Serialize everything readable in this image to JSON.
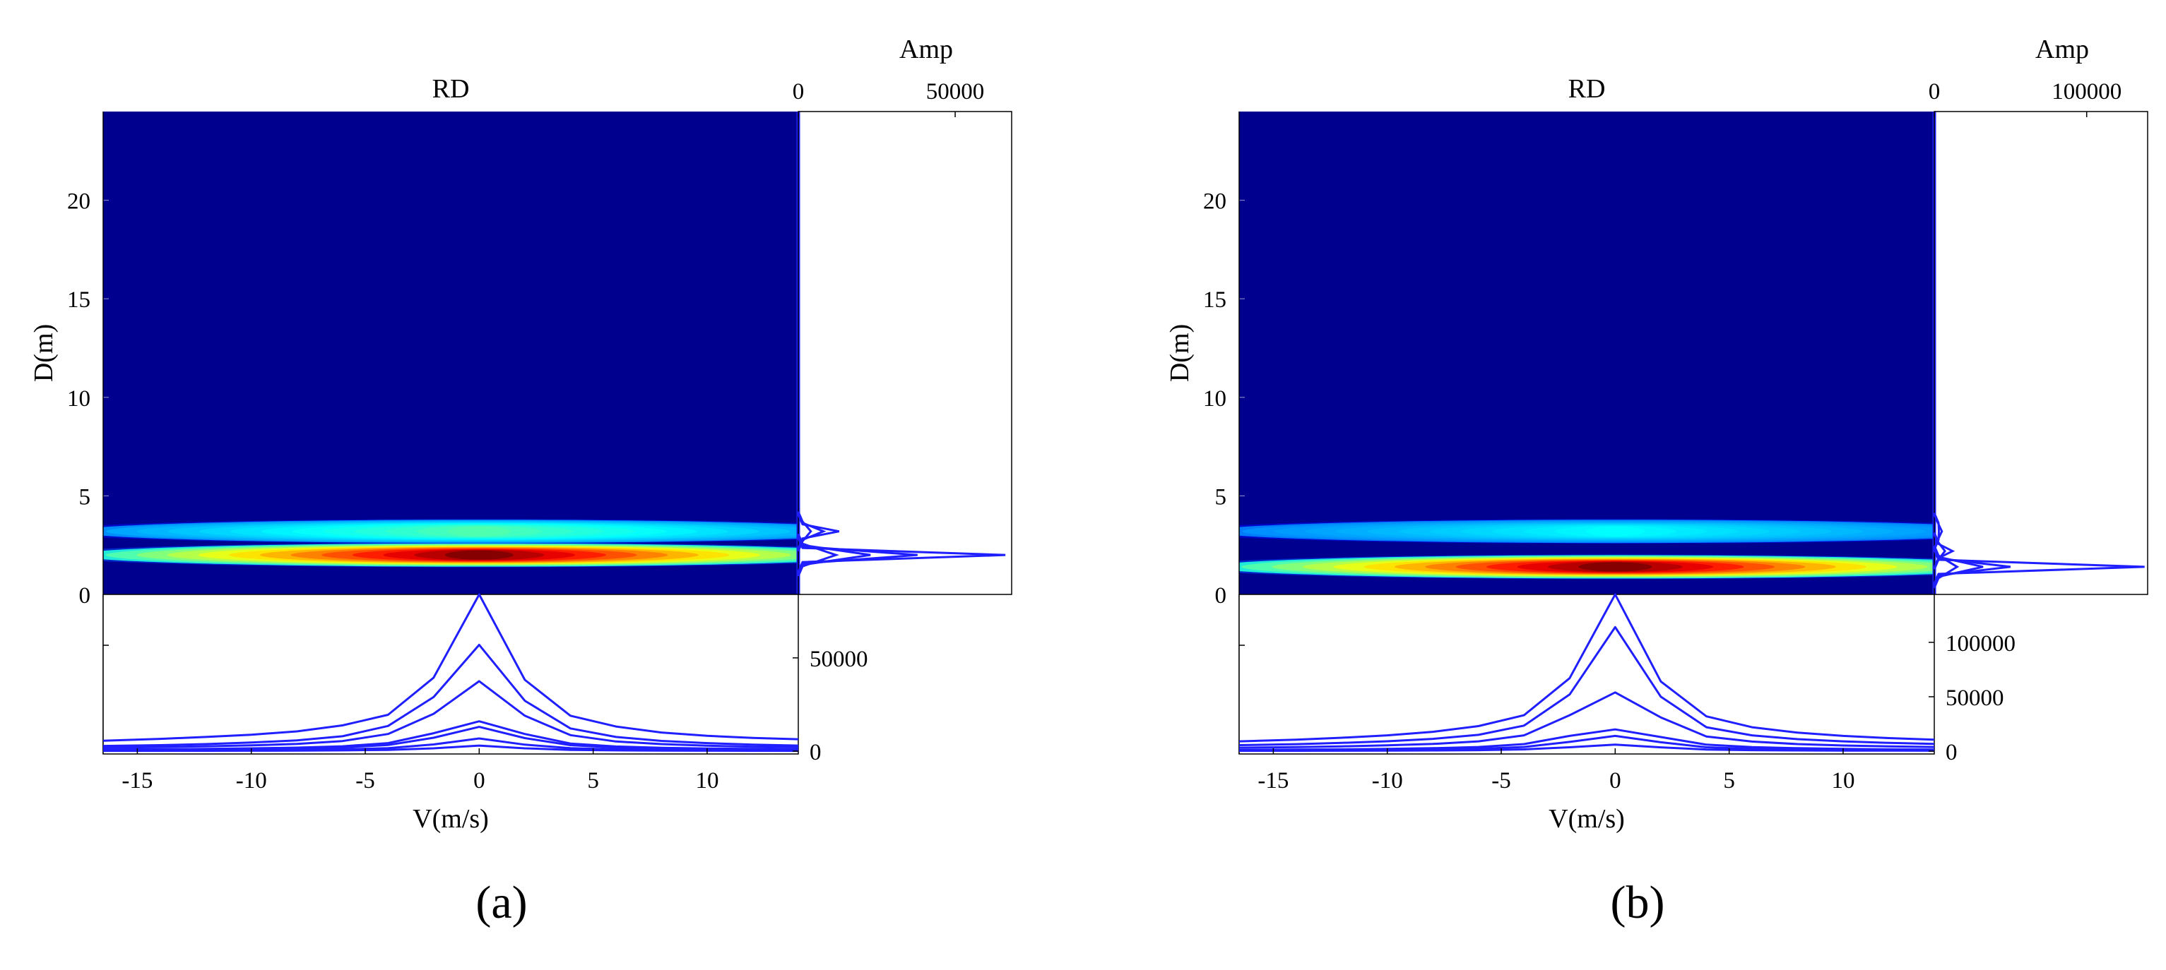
{
  "colors": {
    "background_low": "#00008f",
    "line": "#1f1fff",
    "axis": "#000000"
  },
  "chart_data": [
    {
      "type": "heatmap",
      "panel_label": "(a)",
      "title": "RD",
      "xlabel": "V(m/s)",
      "ylabel": "D(m)",
      "xlim": [
        -16.5,
        14
      ],
      "ylim": [
        0,
        24.5
      ],
      "xticks": [
        -15,
        -10,
        -5,
        0,
        5,
        10
      ],
      "yticks": [
        0,
        5,
        10,
        15,
        20
      ],
      "colormap": "jet",
      "hotspots": [
        {
          "v": 0,
          "d": 2.0,
          "intensity": 1.0,
          "spread_v": 2.4,
          "spread_d": 0.18
        },
        {
          "v": 0,
          "d": 3.2,
          "intensity": 0.3,
          "spread_v": 2.2,
          "spread_d": 0.2
        }
      ],
      "side_profile": {
        "label": "Amp",
        "axis_ticks": [
          0,
          50000
        ],
        "xlim": [
          0,
          68000
        ],
        "peaks": [
          {
            "d": 2.0,
            "amps": [
              66000,
              38000,
              23000,
              12000
            ]
          },
          {
            "d": 3.2,
            "amps": [
              13000,
              8000,
              4000
            ]
          }
        ]
      },
      "bottom_profile": {
        "axis_ticks": [
          0,
          50000
        ],
        "ylim": [
          0,
          84000
        ],
        "v": [
          -16.5,
          -14,
          -12,
          -10,
          -8,
          -6,
          -4,
          -2,
          0,
          2,
          4,
          6,
          8,
          10,
          12,
          14
        ],
        "series": [
          [
            5600,
            6600,
            7600,
            8800,
            10600,
            13800,
            19500,
            39400,
            84000,
            38200,
            19000,
            13200,
            10000,
            8200,
            7100,
            6400
          ],
          [
            2800,
            3200,
            3800,
            4600,
            5800,
            8000,
            13500,
            29000,
            57000,
            27000,
            12200,
            7600,
            5500,
            4300,
            3500,
            3000
          ],
          [
            1900,
            2200,
            2600,
            3100,
            3900,
            5400,
            9200,
            20000,
            37500,
            19000,
            8600,
            5200,
            3800,
            2900,
            2400,
            2100
          ],
          [
            900,
            1000,
            1200,
            1500,
            1900,
            2600,
            4300,
            9600,
            16000,
            9200,
            4100,
            2500,
            1800,
            1400,
            1200,
            1000
          ],
          [
            700,
            800,
            950,
            1150,
            1450,
            2000,
            3300,
            7200,
            13000,
            7000,
            3200,
            1900,
            1400,
            1100,
            900,
            800
          ],
          [
            350,
            400,
            480,
            580,
            720,
            1000,
            1600,
            3600,
            6800,
            3500,
            1600,
            950,
            700,
            560,
            460,
            400
          ],
          [
            150,
            170,
            200,
            240,
            300,
            420,
            700,
            1500,
            3000,
            1500,
            680,
            400,
            300,
            240,
            200,
            170
          ]
        ]
      }
    },
    {
      "type": "heatmap",
      "panel_label": "(b)",
      "title": "RD",
      "xlabel": "V(m/s)",
      "ylabel": "D(m)",
      "xlim": [
        -16.5,
        14
      ],
      "ylim": [
        0,
        24.5
      ],
      "xticks": [
        -15,
        -10,
        -5,
        0,
        5,
        10
      ],
      "yticks": [
        0,
        5,
        10,
        15,
        20
      ],
      "colormap": "jet",
      "hotspots": [
        {
          "v": 0,
          "d": 1.4,
          "intensity": 1.0,
          "spread_v": 2.6,
          "spread_d": 0.18
        },
        {
          "v": 0,
          "d": 3.2,
          "intensity": 0.2,
          "spread_v": 2.0,
          "spread_d": 0.2
        }
      ],
      "side_profile": {
        "label": "Amp",
        "axis_ticks": [
          0,
          100000
        ],
        "xlim": [
          0,
          140000
        ],
        "peaks": [
          {
            "d": 1.4,
            "amps": [
              138000,
              50000,
              32000,
              15000
            ]
          },
          {
            "d": 2.2,
            "amps": [
              12000,
              7000
            ]
          },
          {
            "d": 3.2,
            "amps": [
              5000,
              3000
            ]
          }
        ]
      },
      "bottom_profile": {
        "axis_ticks": [
          0,
          50000,
          100000
        ],
        "ylim": [
          0,
          144000
        ],
        "v": [
          -16.5,
          -14,
          -12,
          -10,
          -8,
          -6,
          -4,
          -2,
          0,
          2,
          4,
          6,
          8,
          10,
          12,
          14
        ],
        "series": [
          [
            9000,
            10500,
            12300,
            14500,
            17800,
            23000,
            33000,
            67000,
            144000,
            64000,
            32000,
            22000,
            17000,
            14000,
            12000,
            10500
          ],
          [
            5500,
            6400,
            7600,
            9100,
            11300,
            15000,
            23500,
            52000,
            114000,
            50000,
            22000,
            14500,
            11000,
            9000,
            7600,
            6600
          ],
          [
            3200,
            3700,
            4400,
            5300,
            6600,
            9000,
            14500,
            33000,
            54000,
            31000,
            13500,
            8800,
            6500,
            5200,
            4400,
            3800
          ],
          [
            1200,
            1400,
            1700,
            2100,
            2700,
            3800,
            6500,
            14000,
            20000,
            13000,
            6000,
            3700,
            2700,
            2100,
            1700,
            1400
          ],
          [
            700,
            820,
            980,
            1200,
            1550,
            2200,
            3800,
            8500,
            14000,
            8200,
            3600,
            2100,
            1500,
            1200,
            1000,
            850
          ],
          [
            300,
            350,
            420,
            510,
            650,
            900,
            1600,
            3600,
            6000,
            3500,
            1500,
            900,
            650,
            520,
            430,
            360
          ]
        ]
      }
    }
  ]
}
